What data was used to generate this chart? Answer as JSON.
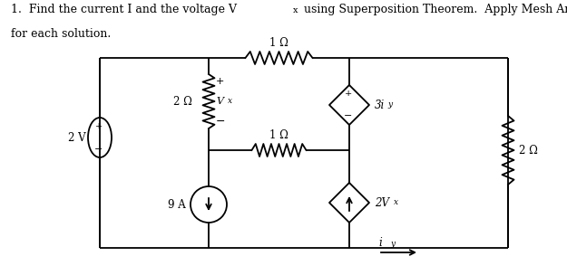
{
  "bg_color": "#ffffff",
  "color": "#000000",
  "label_1ohm_top": "1 Ω",
  "label_1ohm_mid": "1 Ω",
  "label_2ohm_left": "2 Ω",
  "label_2ohm_right": "2 Ω",
  "label_Vx": "V",
  "label_Vx_sub": "x",
  "label_2Vx": "2V",
  "label_2Vx_sub": "x",
  "label_3iy": "3i",
  "label_3iy_sub": "y",
  "label_9A": "9 A",
  "label_2V": "2 V",
  "label_iy": "i",
  "label_iy_sub": "y",
  "title1": "1.  Find the current I and the voltage V",
  "title1_sub": "x",
  "title1_rest": " using Superposition Theorem.  Apply Mesh Analysis",
  "title2": "for each solution."
}
